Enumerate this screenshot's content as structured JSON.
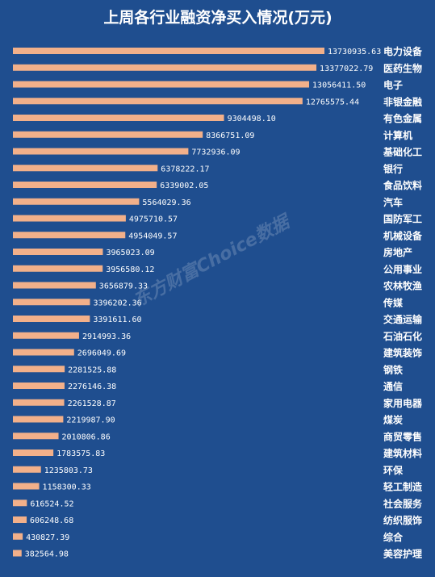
{
  "watermark": "东方财富Choice数据",
  "chart_data": {
    "type": "bar",
    "orientation": "horizontal",
    "title": "上周各行业融资净买入情况(万元)",
    "bar_color": "#f2b08a",
    "background_color": "#1f4e8f",
    "categories": [
      "电力设备",
      "医药生物",
      "电子",
      "非银金融",
      "有色金属",
      "计算机",
      "基础化工",
      "银行",
      "食品饮料",
      "汽车",
      "国防军工",
      "机械设备",
      "房地产",
      "公用事业",
      "农林牧渔",
      "传媒",
      "交通运输",
      "石油石化",
      "建筑装饰",
      "钢铁",
      "通信",
      "家用电器",
      "煤炭",
      "商贸零售",
      "建筑材料",
      "环保",
      "轻工制造",
      "社会服务",
      "纺织服饰",
      "综合",
      "美容护理"
    ],
    "values": [
      13730935.63,
      13377022.79,
      13056411.5,
      12765575.44,
      9304498.1,
      8366751.09,
      7732936.09,
      6378222.17,
      6339002.05,
      5564029.36,
      4975710.57,
      4954049.57,
      3965023.09,
      3956580.12,
      3656879.33,
      3396202.36,
      3391611.6,
      2914993.36,
      2696049.69,
      2281525.88,
      2276146.38,
      2261528.87,
      2219987.9,
      2010806.86,
      1783575.83,
      1235803.73,
      1158300.33,
      616524.52,
      606248.68,
      430827.39,
      382564.98
    ],
    "value_labels": [
      "13730935.63",
      "13377022.79",
      "13056411.50",
      "12765575.44",
      "9304498.10",
      "8366751.09",
      "7732936.09",
      "6378222.17",
      "6339002.05",
      "5564029.36",
      "4975710.57",
      "4954049.57",
      "3965023.09",
      "3956580.12",
      "3656879.33",
      "3396202.36",
      "3391611.60",
      "2914993.36",
      "2696049.69",
      "2281525.88",
      "2276146.38",
      "2261528.87",
      "2219987.90",
      "2010806.86",
      "1783575.83",
      "1235803.73",
      "1158300.33",
      "616524.52",
      "606248.68",
      "430827.39",
      "382564.98"
    ],
    "xlim": [
      0,
      13730935.63
    ],
    "grid": false,
    "legend": "none"
  }
}
